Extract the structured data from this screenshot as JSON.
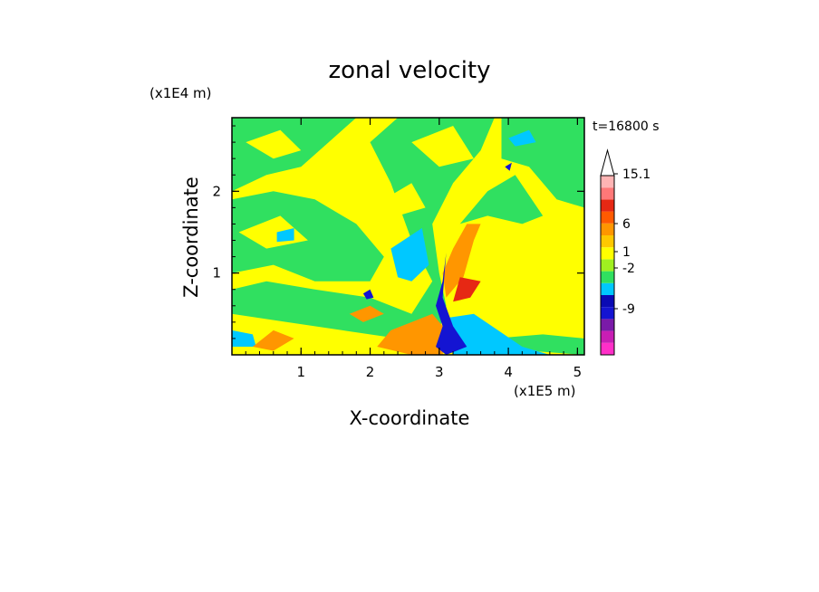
{
  "chart_data": {
    "type": "heatmap",
    "title": "zonal velocity",
    "xlabel": "X-coordinate",
    "ylabel": "Z-coordinate",
    "x_unit": "(x1E5 m)",
    "y_unit": "(x1E4 m)",
    "time_label": "t=16800 s",
    "xlim": [
      0,
      5.1
    ],
    "ylim": [
      0,
      2.9
    ],
    "x_ticks": [
      "1",
      "2",
      "3",
      "4",
      "5"
    ],
    "y_ticks": [
      "1",
      "2"
    ],
    "grid": false,
    "colorbar": {
      "placement": "right",
      "tick_labels": [
        "15.1",
        "6",
        "1",
        "-2",
        "-9"
      ],
      "colors": [
        "#ff2fc8",
        "#c81eb4",
        "#7a1aa8",
        "#1414d2",
        "#0a0ab4",
        "#00c8ff",
        "#30e060",
        "#a0f020",
        "#ffff00",
        "#ffc800",
        "#ff9600",
        "#ff5a00",
        "#e62814",
        "#ff7878",
        "#ffb4b4"
      ],
      "extends": "max"
    },
    "background_color": "#ffff00",
    "field_colors": {
      "positive": "#ffff00",
      "weak": "#30e060",
      "weak_negative": "#00c8ff",
      "strong_negative": "#1414d2",
      "strong_positive": "#ff9600",
      "extreme_positive": "#e62814"
    }
  }
}
